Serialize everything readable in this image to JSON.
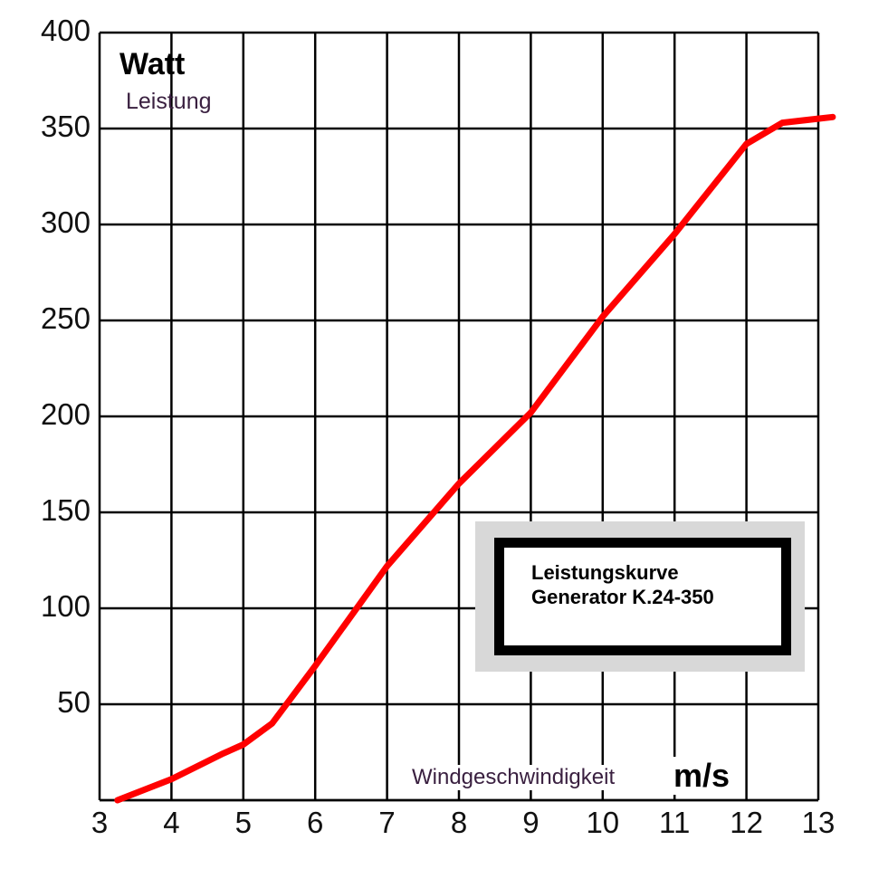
{
  "chart_data": {
    "type": "line",
    "title": "Leistungskurve Generator K.24-350",
    "xlabel": "Windgeschwindigkeit m/s",
    "ylabel": "Watt Leistung",
    "xlim": [
      3,
      13
    ],
    "ylim": [
      0,
      400
    ],
    "grid": true,
    "legend_position": "lower-right box",
    "x_ticks": [
      "3",
      "4",
      "5",
      "6",
      "7",
      "8",
      "9",
      "10",
      "11",
      "12",
      "13"
    ],
    "y_ticks": [
      "50",
      "100",
      "150",
      "200",
      "250",
      "300",
      "350",
      "400"
    ],
    "series": [
      {
        "name": "Leistungskurve Generator K.24-350",
        "color": "#ff0000",
        "x": [
          3.25,
          4,
          4.7,
          5,
          5.4,
          6,
          7,
          8,
          9,
          10,
          11,
          12,
          12.5,
          13.2
        ],
        "y": [
          0,
          11,
          24,
          29,
          40,
          70,
          122,
          165,
          202,
          252,
          295,
          342,
          353,
          356
        ]
      }
    ]
  },
  "labels": {
    "y_unit": "Watt",
    "y_name": "Leistung",
    "x_name": "Windgeschwindigkeit",
    "x_unit": "m/s",
    "legend_line1": "Leistungskurve",
    "legend_line2": "Generator K.24-350"
  },
  "colors": {
    "curve": "#ff0000",
    "grid": "#000000",
    "legend_frame": "#d8d8d8"
  }
}
